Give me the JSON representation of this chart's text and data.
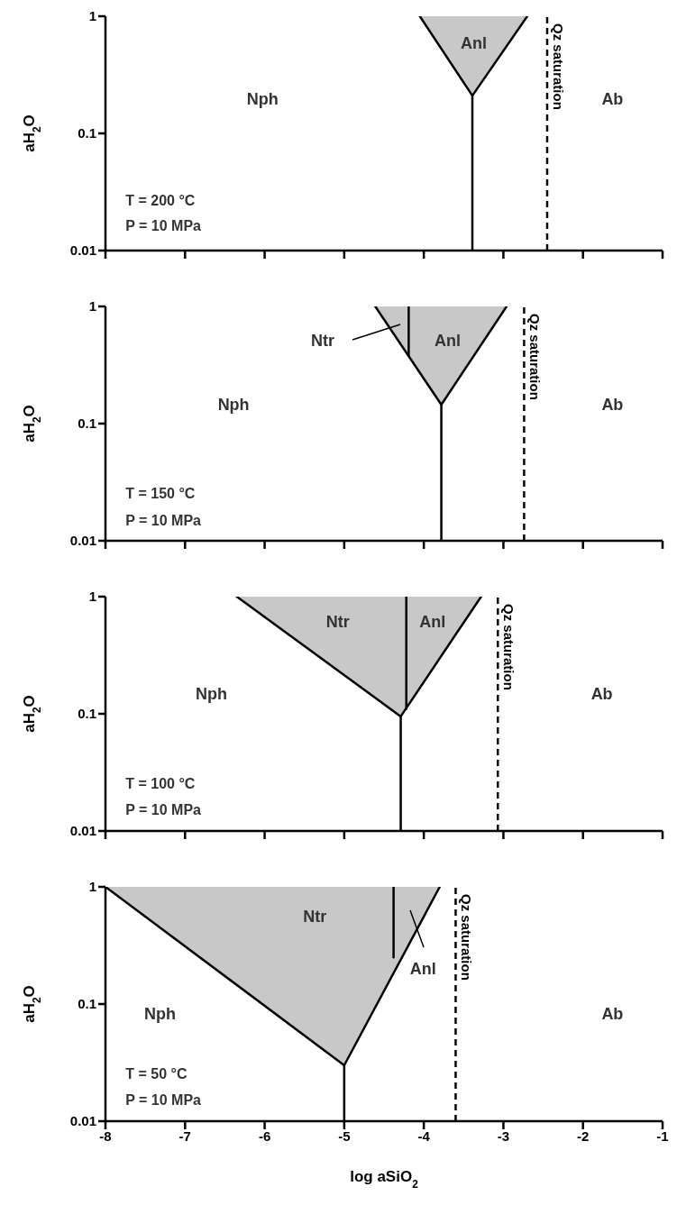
{
  "chart_data": [
    {
      "type": "line",
      "ylabel": "aH$_{2}$O",
      "log": "y",
      "xlim": [
        -8,
        -1
      ],
      "xticks": [
        -8,
        -7,
        -6,
        -5,
        -4,
        -3,
        -2,
        -1
      ],
      "ylim": [
        0.01,
        1
      ],
      "yticks": [
        0.01,
        0.1,
        1
      ],
      "tick_labels": "y",
      "series": [
        {
          "color": "#000000",
          "x": [
            -4.05,
            -3.39,
            -2.7
          ],
          "values": [
            1,
            0.21,
            1
          ],
          "lower": [
            1,
            0.21,
            1
          ],
          "upper": [
            1,
            1,
            1
          ]
        },
        {
          "color": "#000000",
          "x": [
            -3.39,
            -3.39
          ],
          "values": [
            0.01,
            0.21
          ]
        }
      ],
      "ref_lines": [
        {
          "axis": "x",
          "value": -2.45,
          "label": "Qz saturation",
          "color": "#000000",
          "line_style": "dashed"
        }
      ],
      "annotations": [
        "Nph",
        "Anl",
        "Ab",
        "T = 200 °C",
        "P = 10 MPa"
      ]
    },
    {
      "type": "line",
      "ylabel": "aH$_{2}$O",
      "log": "y",
      "xlim": [
        -8,
        -1
      ],
      "xticks": [
        -8,
        -7,
        -6,
        -5,
        -4,
        -3,
        -2,
        -1
      ],
      "ylim": [
        0.01,
        1
      ],
      "yticks": [
        0.01,
        0.1,
        1
      ],
      "tick_labels": "y",
      "series": [
        {
          "color": "#000000",
          "x": [
            -4.61,
            -3.78,
            -2.96
          ],
          "values": [
            1,
            0.145,
            1
          ],
          "lower": [
            1,
            0.145,
            1
          ],
          "upper": [
            1,
            1,
            1
          ]
        },
        {
          "color": "#000000",
          "x": [
            -3.78,
            -3.78
          ],
          "values": [
            0.01,
            0.145
          ]
        },
        {
          "color": "#000000",
          "x": [
            -4.19,
            -4.19
          ],
          "values": [
            0.38,
            1
          ]
        }
      ],
      "ref_lines": [
        {
          "axis": "x",
          "value": -2.74,
          "label": "Qz saturation",
          "color": "#000000",
          "line_style": "dashed"
        }
      ],
      "annotations": [
        "Ntr",
        "Nph",
        "Anl",
        "Ab",
        "T = 150 °C",
        "P = 10 MPa"
      ]
    },
    {
      "type": "line",
      "ylabel": "aH$_{2}$O",
      "log": "y",
      "xlim": [
        -8,
        -1
      ],
      "xticks": [
        -8,
        -7,
        -6,
        -5,
        -4,
        -3,
        -2,
        -1
      ],
      "ylim": [
        0.01,
        1
      ],
      "yticks": [
        0.01,
        0.1,
        1
      ],
      "tick_labels": "y",
      "series": [
        {
          "color": "#000000",
          "x": [
            -6.35,
            -4.29,
            -3.28
          ],
          "values": [
            1,
            0.095,
            1
          ],
          "lower": [
            1,
            0.095,
            1
          ],
          "upper": [
            1,
            1,
            1
          ]
        },
        {
          "color": "#000000",
          "x": [
            -4.29,
            -4.29
          ],
          "values": [
            0.01,
            0.095
          ]
        },
        {
          "color": "#000000",
          "x": [
            -4.22,
            -4.22
          ],
          "values": [
            0.11,
            1
          ]
        }
      ],
      "ref_lines": [
        {
          "axis": "x",
          "value": -3.07,
          "label": "Qz saturation",
          "color": "#000000",
          "line_style": "dashed"
        }
      ],
      "annotations": [
        "Ntr",
        "Anl",
        "Nph",
        "Ab",
        "T = 100 °C",
        "P = 10 MPa"
      ]
    },
    {
      "type": "line",
      "ylabel": "aH$_{2}$O",
      "xlabel": "log aSiO$_{2}$",
      "log": "y",
      "xlim": [
        -8,
        -1
      ],
      "xticks": [
        -8,
        -7,
        -6,
        -5,
        -4,
        -3,
        -2,
        -1
      ],
      "ylim": [
        0.01,
        1
      ],
      "yticks": [
        0.01,
        0.1,
        1
      ],
      "series": [
        {
          "color": "#000000",
          "x": [
            -8,
            -5,
            -3.8
          ],
          "values": [
            1,
            0.03,
            1
          ],
          "lower": [
            1,
            0.03,
            1
          ],
          "upper": [
            1,
            1,
            1
          ]
        },
        {
          "color": "#000000",
          "x": [
            -5,
            -5
          ],
          "values": [
            0.01,
            0.03
          ]
        },
        {
          "color": "#000000",
          "x": [
            -4.38,
            -4.38
          ],
          "values": [
            0.25,
            1
          ]
        }
      ],
      "ref_lines": [
        {
          "axis": "x",
          "value": -3.6,
          "label": "Qz saturation",
          "color": "#000000",
          "line_style": "dashed"
        }
      ],
      "annotations": [
        "Ntr",
        "Anl",
        "Nph",
        "Ab",
        "T = 50 °C",
        "P = 10 MPa"
      ]
    }
  ]
}
